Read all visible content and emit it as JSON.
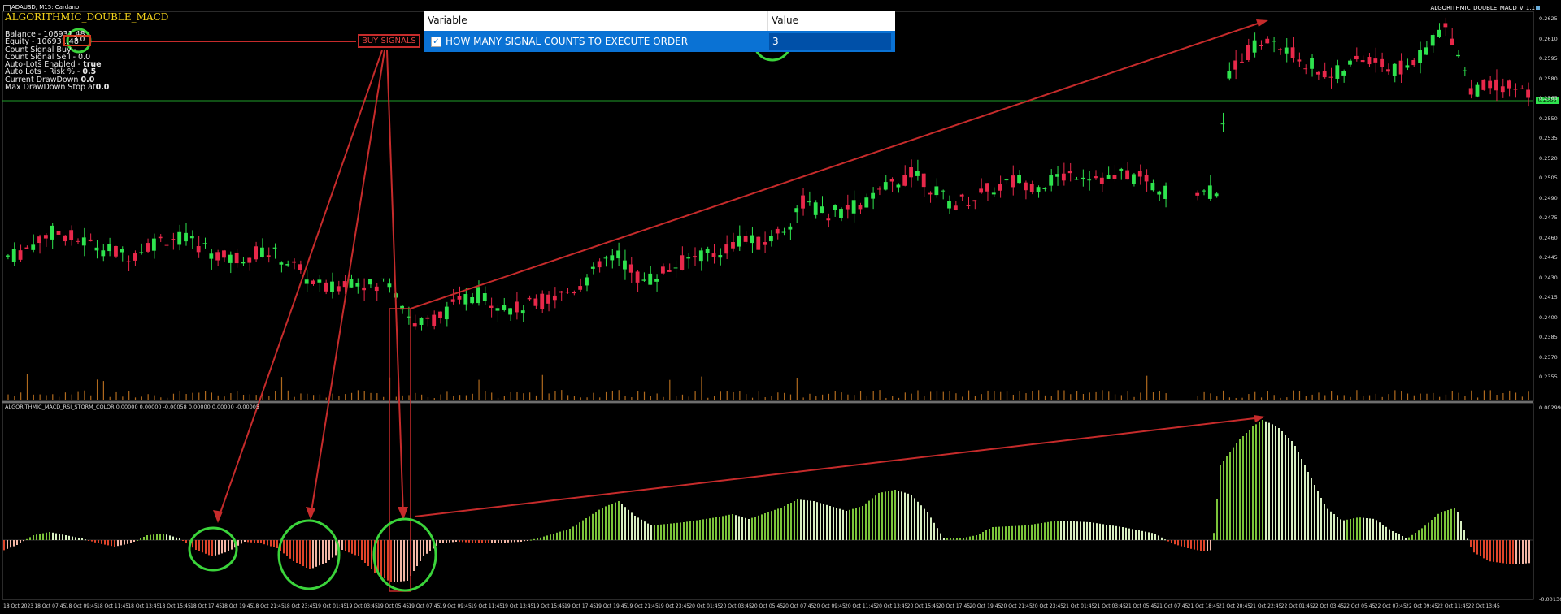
{
  "symbol_line": "ADAUSD, M15: Cardano",
  "indicator_name": "ALGORITHMIC_DOUBLE_MACD",
  "chart_title_right": "ALGORITHMIC_DOUBLE_MACD_v_1.1",
  "account": {
    "balance": "Balance -     106931.48",
    "equity": "Equity -     106931.48",
    "count_signal_buy_label": "Count Signal Buy  -",
    "count_signal_buy_value": "3.0",
    "count_signal_sell": "Count Signal Sell  -    0.0",
    "auto_lots_enabled_label": "Auto-Lots Enabled  -",
    "auto_lots_enabled_value": "true",
    "auto_lots_risk_label": "Auto Lots - Risk %    -",
    "auto_lots_risk_value": "0.5",
    "current_drawdown_label": "Current DrawDown",
    "current_drawdown_value": "0.0",
    "max_drawdown_label": "Max DrawDown Stop at",
    "max_drawdown_value": "0.0"
  },
  "annotation": {
    "buy_signals": "BUY SIGNALS"
  },
  "settings_panel": {
    "header_variable": "Variable",
    "header_value": "Value",
    "row_label": "HOW MANY SIGNAL COUNTS TO EXECUTE ORDER",
    "row_value": "3",
    "checked": true
  },
  "sub_window_title": "ALGORITHMIC_MACD_RSI_STORM_COLOR 0.00000 0.00000 -0.00058 0.00000 0.00000 -0.00005",
  "price_axis": [
    "0.2625",
    "0.2610",
    "0.2595",
    "0.2580",
    "0.2565",
    "0.2550",
    "0.2535",
    "0.2520",
    "0.2505",
    "0.2490",
    "0.2475",
    "0.2460",
    "0.2445",
    "0.2430",
    "0.2415",
    "0.2400",
    "0.2385",
    "0.2370",
    "0.2355"
  ],
  "current_price": "0.2566",
  "sub_axis_top": "0.00299",
  "sub_axis_bottom": "-0.00136",
  "time_axis": [
    "18 Oct 2023",
    "18 Oct 07:45",
    "18 Oct 09:45",
    "18 Oct 11:45",
    "18 Oct 13:45",
    "18 Oct 15:45",
    "18 Oct 17:45",
    "18 Oct 19:45",
    "18 Oct 21:45",
    "18 Oct 23:45",
    "19 Oct 01:45",
    "19 Oct 03:45",
    "19 Oct 05:45",
    "19 Oct 07:45",
    "19 Oct 09:45",
    "19 Oct 11:45",
    "19 Oct 13:45",
    "19 Oct 15:45",
    "19 Oct 17:45",
    "19 Oct 19:45",
    "19 Oct 21:45",
    "19 Oct 23:45",
    "20 Oct 01:45",
    "20 Oct 03:45",
    "20 Oct 05:45",
    "20 Oct 07:45",
    "20 Oct 09:45",
    "20 Oct 11:45",
    "20 Oct 13:45",
    "20 Oct 15:45",
    "20 Oct 17:45",
    "20 Oct 19:45",
    "20 Oct 21:45",
    "20 Oct 23:45",
    "21 Oct 01:45",
    "21 Oct 03:45",
    "21 Oct 05:45",
    "21 Oct 07:45",
    "21 Oct 18:45",
    "21 Oct 20:45",
    "21 Oct 22:45",
    "22 Oct 01:45",
    "22 Oct 03:45",
    "22 Oct 05:45",
    "22 Oct 07:45",
    "22 Oct 09:45",
    "22 Oct 11:45",
    "22 Oct 13:45"
  ],
  "colors": {
    "bull": "#2ee34e",
    "bear": "#e8284a",
    "hist_green": "#7cc43a",
    "hist_red": "#e0442a",
    "volume": "#b06a1e",
    "arrow": "#c62b2b",
    "circle": "#3bd43b",
    "price_line": "#1f9e2a"
  },
  "chart_data": {
    "type": "candlestick",
    "series_price": [
      0.2448,
      0.245,
      0.2456,
      0.2462,
      0.2466,
      0.2464,
      0.246,
      0.2458,
      0.2455,
      0.2452,
      0.2449,
      0.245,
      0.2456,
      0.2459,
      0.2462,
      0.2461,
      0.2458,
      0.2455,
      0.245,
      0.2446,
      0.2447,
      0.2449,
      0.2452,
      0.245,
      0.2446,
      0.244,
      0.2432,
      0.2426,
      0.2423,
      0.2428,
      0.2432,
      0.2429,
      0.2424,
      0.2433,
      0.2418,
      0.24,
      0.2398,
      0.2402,
      0.2407,
      0.2413,
      0.2418,
      0.242,
      0.2416,
      0.2412,
      0.2409,
      0.2411,
      0.2414,
      0.2417,
      0.242,
      0.2424,
      0.243,
      0.2436,
      0.2446,
      0.2448,
      0.244,
      0.243,
      0.2432,
      0.2438,
      0.2441,
      0.2445,
      0.245,
      0.2448,
      0.2452,
      0.2458,
      0.2462,
      0.2456,
      0.246,
      0.2466,
      0.2474,
      0.2488,
      0.2484,
      0.2478,
      0.2481,
      0.2483,
      0.2486,
      0.249,
      0.2496,
      0.2503,
      0.2506,
      0.251,
      0.25,
      0.2492,
      0.2486,
      0.2489,
      0.2492,
      0.2496,
      0.2499,
      0.2502,
      0.2504,
      0.25,
      0.2502,
      0.2505,
      0.2508,
      0.251,
      0.2508,
      0.2506,
      0.2504,
      0.2509,
      0.2506,
      0.2502,
      0.2498,
      0.2494,
      0.2496,
      0.2497,
      0.2494,
      0.2498,
      0.2584,
      0.2594,
      0.26,
      0.2606,
      0.2604,
      0.2598,
      0.2594,
      0.259,
      0.2584,
      0.258,
      0.2586,
      0.259,
      0.2594,
      0.2592,
      0.2584,
      0.2586,
      0.259,
      0.2598,
      0.2612,
      0.2616,
      0.2598,
      0.257,
      0.2572,
      0.2574,
      0.2574,
      0.257,
      0.2566
    ]
  }
}
